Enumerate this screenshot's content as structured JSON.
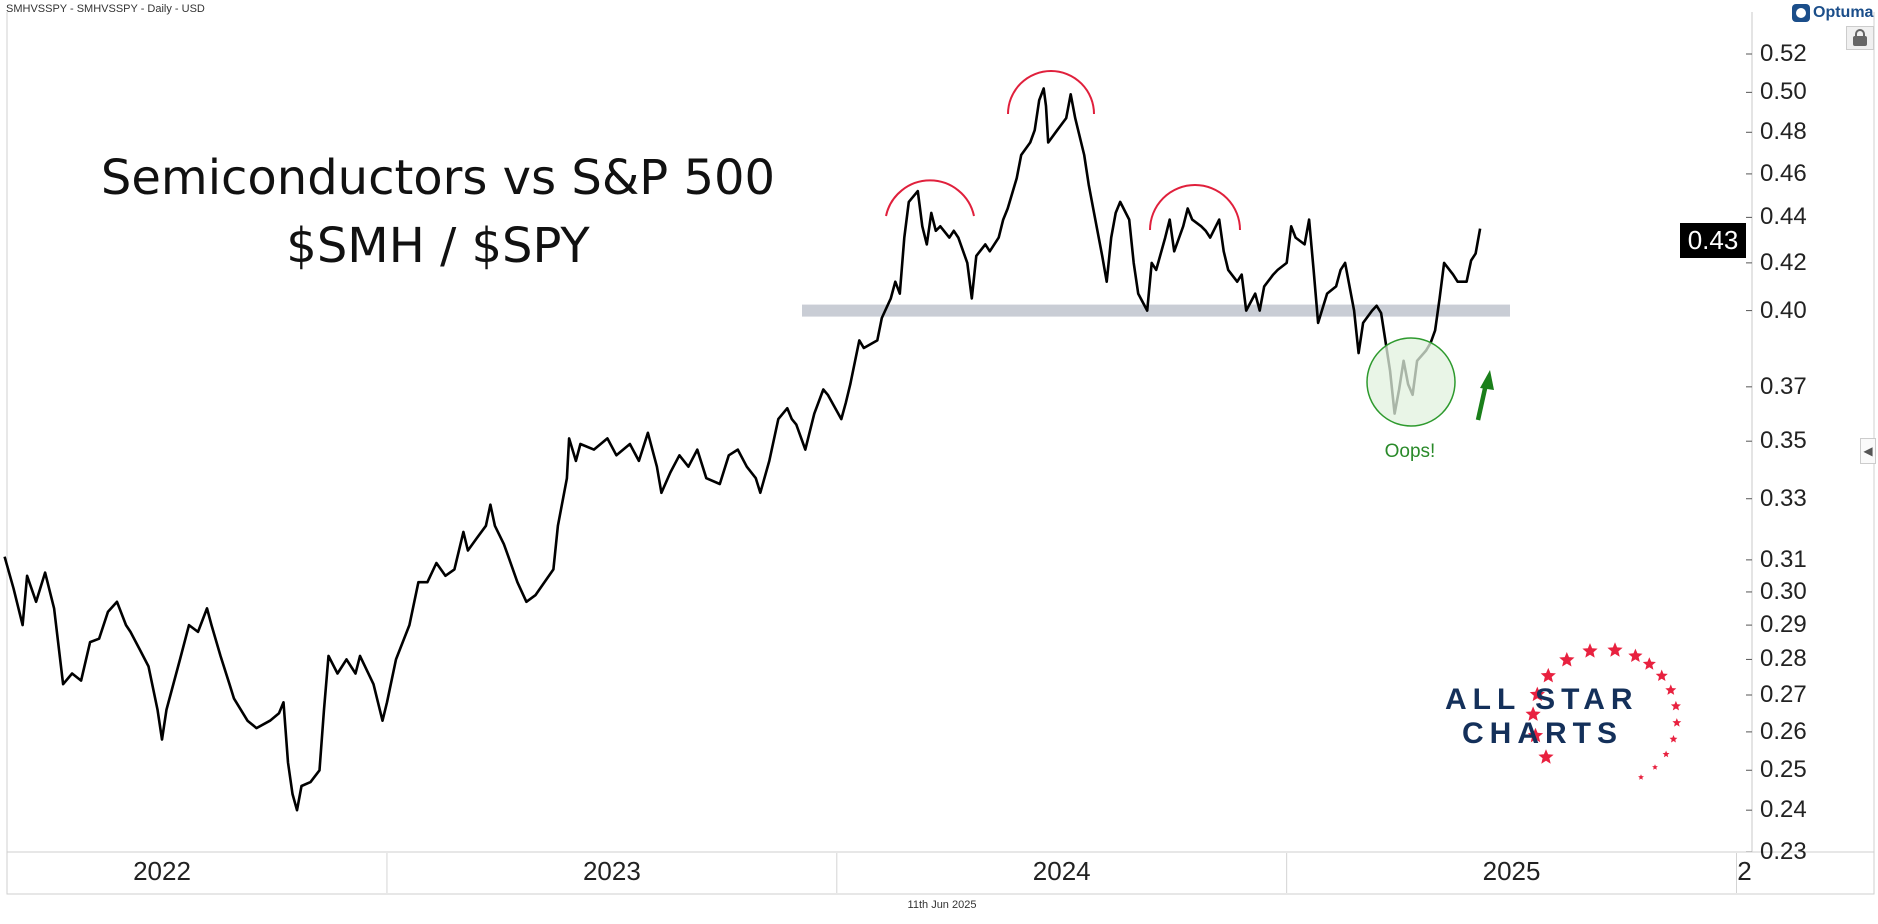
{
  "header": {
    "symbol_line": "SMHVSSPY - SMHVSSPY - Daily - USD"
  },
  "brand": {
    "name": "Optuma"
  },
  "footer": {
    "date": "11th Jun 2025"
  },
  "annotations": {
    "title_line1": "Semiconductors vs S&P 500",
    "title_line2": "$SMH / $SPY",
    "oops": "Oops!",
    "colors": {
      "arcs": "#e0203c",
      "band": "#c3c8d0",
      "circle_fill": "#e2f1df",
      "circle_stroke": "#2e9a2e",
      "arrow": "#1a7f1a"
    }
  },
  "logo": {
    "line1": "ALL STAR",
    "line2": "CHARTS",
    "text_color": "#14305a",
    "star_color": "#e8213f"
  },
  "chart_data": {
    "type": "line",
    "title": "Semiconductors vs S&P 500 — $SMH / $SPY",
    "yscale": "log",
    "ylim": [
      0.23,
      0.53
    ],
    "y_ticks": [
      "0.52",
      "0.50",
      "0.48",
      "0.46",
      "0.44",
      "0.42",
      "0.40",
      "0.37",
      "0.35",
      "0.33",
      "0.31",
      "0.30",
      "0.29",
      "0.28",
      "0.27",
      "0.26",
      "0.25",
      "0.24",
      "0.23"
    ],
    "x_ticks": [
      {
        "label": "2022",
        "year": 2022.5
      },
      {
        "label": "2023",
        "year": 2023.5
      },
      {
        "label": "2024",
        "year": 2024.5
      },
      {
        "label": "2025",
        "year": 2025.5
      },
      {
        "label": "2",
        "year": 2026.0
      }
    ],
    "x_dividers": [
      2023.0,
      2024.0,
      2025.0,
      2026.0
    ],
    "last_value": "0.43",
    "support_level": 0.4,
    "series": [
      {
        "name": "SMHVSSPY",
        "color": "#000000",
        "x": [
          2022.15,
          2022.17,
          2022.19,
          2022.2,
          2022.22,
          2022.24,
          2022.26,
          2022.28,
          2022.3,
          2022.32,
          2022.34,
          2022.36,
          2022.38,
          2022.4,
          2022.42,
          2022.43,
          2022.45,
          2022.47,
          2022.49,
          2022.5,
          2022.51,
          2022.54,
          2022.56,
          2022.58,
          2022.6,
          2022.61,
          2022.63,
          2022.65,
          2022.66,
          2022.69,
          2022.71,
          2022.74,
          2022.76,
          2022.77,
          2022.78,
          2022.79,
          2022.8,
          2022.81,
          2022.83,
          2022.85,
          2022.86,
          2022.87,
          2022.89,
          2022.91,
          2022.93,
          2022.94,
          2022.97,
          2022.99,
          2023.0,
          2023.02,
          2023.05,
          2023.07,
          2023.09,
          2023.11,
          2023.13,
          2023.15,
          2023.17,
          2023.18,
          2023.2,
          2023.22,
          2023.23,
          2023.24,
          2023.26,
          2023.27,
          2023.29,
          2023.31,
          2023.33,
          2023.34,
          2023.37,
          2023.38,
          2023.4,
          2023.405,
          2023.42,
          2023.43,
          2023.46,
          2023.49,
          2023.51,
          2023.54,
          2023.56,
          2023.58,
          2023.6,
          2023.61,
          2023.63,
          2023.65,
          2023.67,
          2023.69,
          2023.71,
          2023.74,
          2023.76,
          2023.78,
          2023.8,
          2023.82,
          2023.83,
          2023.85,
          2023.87,
          2023.89,
          2023.9,
          2023.91,
          2023.93,
          2023.95,
          2023.97,
          2023.98,
          2024.01,
          2024.02,
          2024.03,
          2024.05,
          2024.06,
          2024.09,
          2024.1,
          2024.12,
          2024.13,
          2024.14,
          2024.15,
          2024.16,
          2024.18,
          2024.19,
          2024.2,
          2024.21,
          2024.22,
          2024.23,
          2024.25,
          2024.26,
          2024.27,
          2024.29,
          2024.3,
          2024.31,
          2024.33,
          2024.34,
          2024.36,
          2024.37,
          2024.38,
          2024.4,
          2024.41,
          2024.43,
          2024.44,
          2024.45,
          2024.46,
          2024.465,
          2024.47,
          2024.49,
          2024.51,
          2024.52,
          2024.53,
          2024.55,
          2024.56,
          2024.57,
          2024.59,
          2024.6,
          2024.61,
          2024.62,
          2024.63,
          2024.65,
          2024.66,
          2024.67,
          2024.69,
          2024.7,
          2024.71,
          2024.73,
          2024.74,
          2024.75,
          2024.77,
          2024.78,
          2024.79,
          2024.81,
          2024.82,
          2024.83,
          2024.85,
          2024.86,
          2024.87,
          2024.89,
          2024.9,
          2024.91,
          2024.93,
          2024.94,
          2024.95,
          2024.97,
          2024.98,
          2025.0,
          2025.01,
          2025.02,
          2025.04,
          2025.05,
          2025.06,
          2025.07,
          2025.09,
          2025.11,
          2025.12,
          2025.13,
          2025.15,
          2025.16,
          2025.17,
          2025.19,
          2025.2,
          2025.21,
          2025.23,
          2025.24,
          2025.25,
          2025.26,
          2025.27,
          2025.28,
          2025.29,
          2025.31,
          2025.32,
          2025.33,
          2025.34,
          2025.35,
          2025.37,
          2025.38,
          2025.4,
          2025.41,
          2025.42,
          2025.43
        ],
        "y": [
          0.311,
          0.301,
          0.29,
          0.305,
          0.297,
          0.306,
          0.295,
          0.273,
          0.276,
          0.274,
          0.285,
          0.286,
          0.294,
          0.297,
          0.29,
          0.288,
          0.283,
          0.278,
          0.266,
          0.258,
          0.266,
          0.28,
          0.29,
          0.288,
          0.295,
          0.29,
          0.281,
          0.273,
          0.269,
          0.263,
          0.261,
          0.263,
          0.265,
          0.268,
          0.252,
          0.244,
          0.24,
          0.246,
          0.247,
          0.25,
          0.266,
          0.281,
          0.276,
          0.28,
          0.276,
          0.281,
          0.273,
          0.263,
          0.268,
          0.28,
          0.29,
          0.303,
          0.303,
          0.309,
          0.305,
          0.307,
          0.319,
          0.313,
          0.317,
          0.321,
          0.328,
          0.321,
          0.315,
          0.311,
          0.303,
          0.297,
          0.299,
          0.301,
          0.307,
          0.321,
          0.337,
          0.351,
          0.343,
          0.349,
          0.347,
          0.351,
          0.345,
          0.349,
          0.343,
          0.353,
          0.341,
          0.332,
          0.339,
          0.345,
          0.341,
          0.347,
          0.337,
          0.335,
          0.345,
          0.347,
          0.341,
          0.337,
          0.332,
          0.343,
          0.358,
          0.362,
          0.358,
          0.356,
          0.347,
          0.36,
          0.369,
          0.367,
          0.358,
          0.364,
          0.371,
          0.388,
          0.385,
          0.388,
          0.397,
          0.405,
          0.412,
          0.407,
          0.431,
          0.447,
          0.452,
          0.436,
          0.428,
          0.442,
          0.434,
          0.436,
          0.431,
          0.434,
          0.431,
          0.42,
          0.405,
          0.423,
          0.428,
          0.425,
          0.431,
          0.439,
          0.444,
          0.458,
          0.469,
          0.475,
          0.481,
          0.496,
          0.502,
          0.493,
          0.475,
          0.481,
          0.487,
          0.499,
          0.487,
          0.469,
          0.455,
          0.444,
          0.423,
          0.412,
          0.431,
          0.442,
          0.447,
          0.439,
          0.42,
          0.407,
          0.4,
          0.42,
          0.417,
          0.431,
          0.439,
          0.425,
          0.436,
          0.444,
          0.439,
          0.436,
          0.434,
          0.431,
          0.439,
          0.425,
          0.417,
          0.412,
          0.415,
          0.4,
          0.407,
          0.4,
          0.41,
          0.415,
          0.417,
          0.42,
          0.436,
          0.431,
          0.428,
          0.439,
          0.417,
          0.395,
          0.407,
          0.41,
          0.417,
          0.42,
          0.4,
          0.383,
          0.395,
          0.4,
          0.402,
          0.399,
          0.376,
          0.36,
          0.369,
          0.38,
          0.371,
          0.367,
          0.38,
          0.384,
          0.387,
          0.392,
          0.405,
          0.42,
          0.415,
          0.412,
          0.412,
          0.421,
          0.424,
          0.435
        ]
      }
    ]
  }
}
